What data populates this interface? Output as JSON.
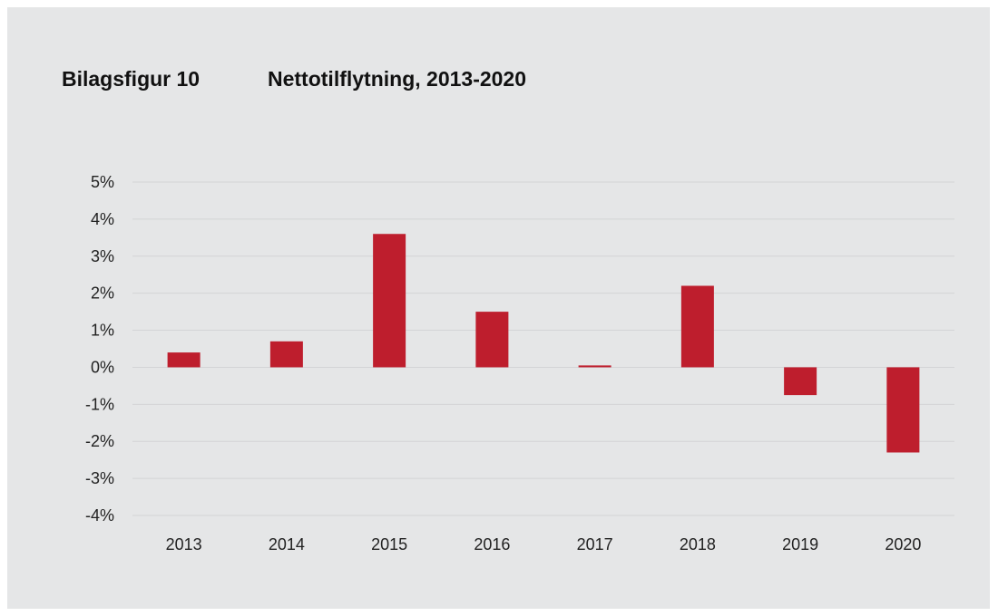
{
  "figure": {
    "label": "Bilagsfigur 10",
    "title": "Nettotilflytning, 2013-2020"
  },
  "colors": {
    "background": "#e5e6e7",
    "bar": "#be1e2d",
    "grid": "#d3d4d6"
  },
  "chart_data": {
    "type": "bar",
    "categories": [
      "2013",
      "2014",
      "2015",
      "2016",
      "2017",
      "2018",
      "2019",
      "2020"
    ],
    "values": [
      0.4,
      0.7,
      3.6,
      1.5,
      0.05,
      2.2,
      -0.75,
      -2.3
    ],
    "y_unit": "%",
    "ylim": [
      -4,
      5
    ],
    "yticks": [
      5,
      4,
      3,
      2,
      1,
      0,
      -1,
      -2,
      -3,
      -4
    ],
    "ytick_labels": [
      "5%",
      "4%",
      "3%",
      "2%",
      "1%",
      "0%",
      "-1%",
      "-2%",
      "-3%",
      "-4%"
    ],
    "grid": true,
    "legend": "none"
  }
}
